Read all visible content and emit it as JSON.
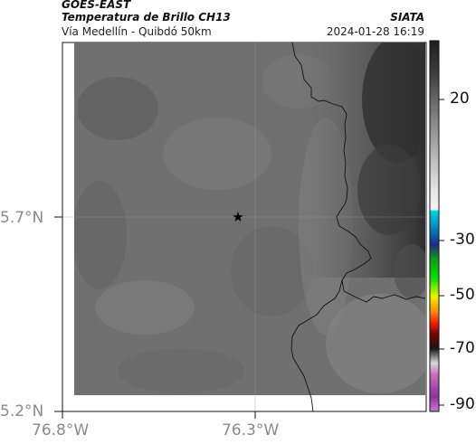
{
  "header": {
    "satellite": "GOES-EAST",
    "product": "Temperatura de Brillo CH13",
    "organization": "SIATA",
    "subtitle": "Vía Medellín - Quibdó 50km",
    "datetime": "2024-01-28 16:19"
  },
  "map_axes": {
    "y_labels": [
      "5.7°N",
      "5.2°N"
    ],
    "x_labels": [
      "76.8°W",
      "76.3°W"
    ]
  },
  "colorbar": {
    "tick_labels": [
      "20",
      "-30",
      "-50",
      "-70",
      "-90"
    ],
    "colors": [
      "#2a2a2a",
      "#8a8a8a",
      "#d8d8d8",
      "#00c8e0",
      "#1a2a9a",
      "#00b000",
      "#e8e800",
      "#ff2a00",
      "#111111",
      "#b0409a"
    ]
  },
  "map": {
    "marker_icon": "star-icon",
    "background_colors": [
      "#6e6e6e",
      "#7a7a7a",
      "#565656",
      "#3a3a3a"
    ],
    "border_color": "#111111"
  }
}
